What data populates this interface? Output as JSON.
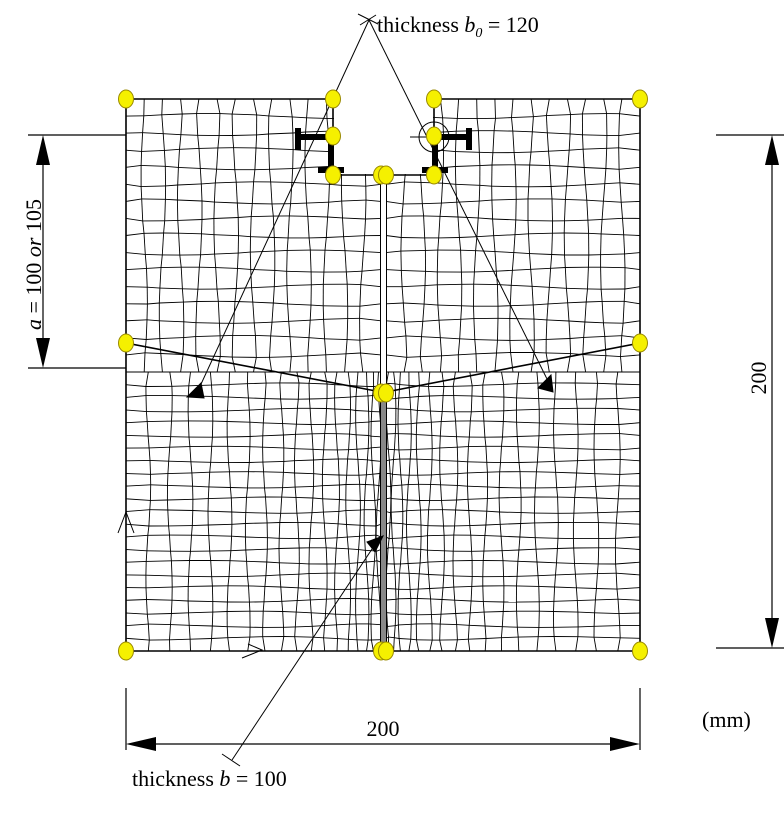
{
  "labels": {
    "thickness_b0_prefix": "thickness ",
    "thickness_b0_symbol": "b",
    "thickness_b0_sub": "0",
    "thickness_b0_value": " = 120",
    "thickness_b_prefix": "thickness ",
    "thickness_b_symbol": "b",
    "thickness_b_value": " = 100",
    "a_symbol": "a",
    "a_value_1": " = 100 ",
    "a_or": "or",
    "a_value_2": " 105",
    "dim_width": "200",
    "dim_height": "200",
    "unit": "(mm)"
  },
  "colors": {
    "node_fill": "#f5f000",
    "node_stroke": "#9a8a00",
    "line": "#000000",
    "crack_fill": "#888888"
  }
}
